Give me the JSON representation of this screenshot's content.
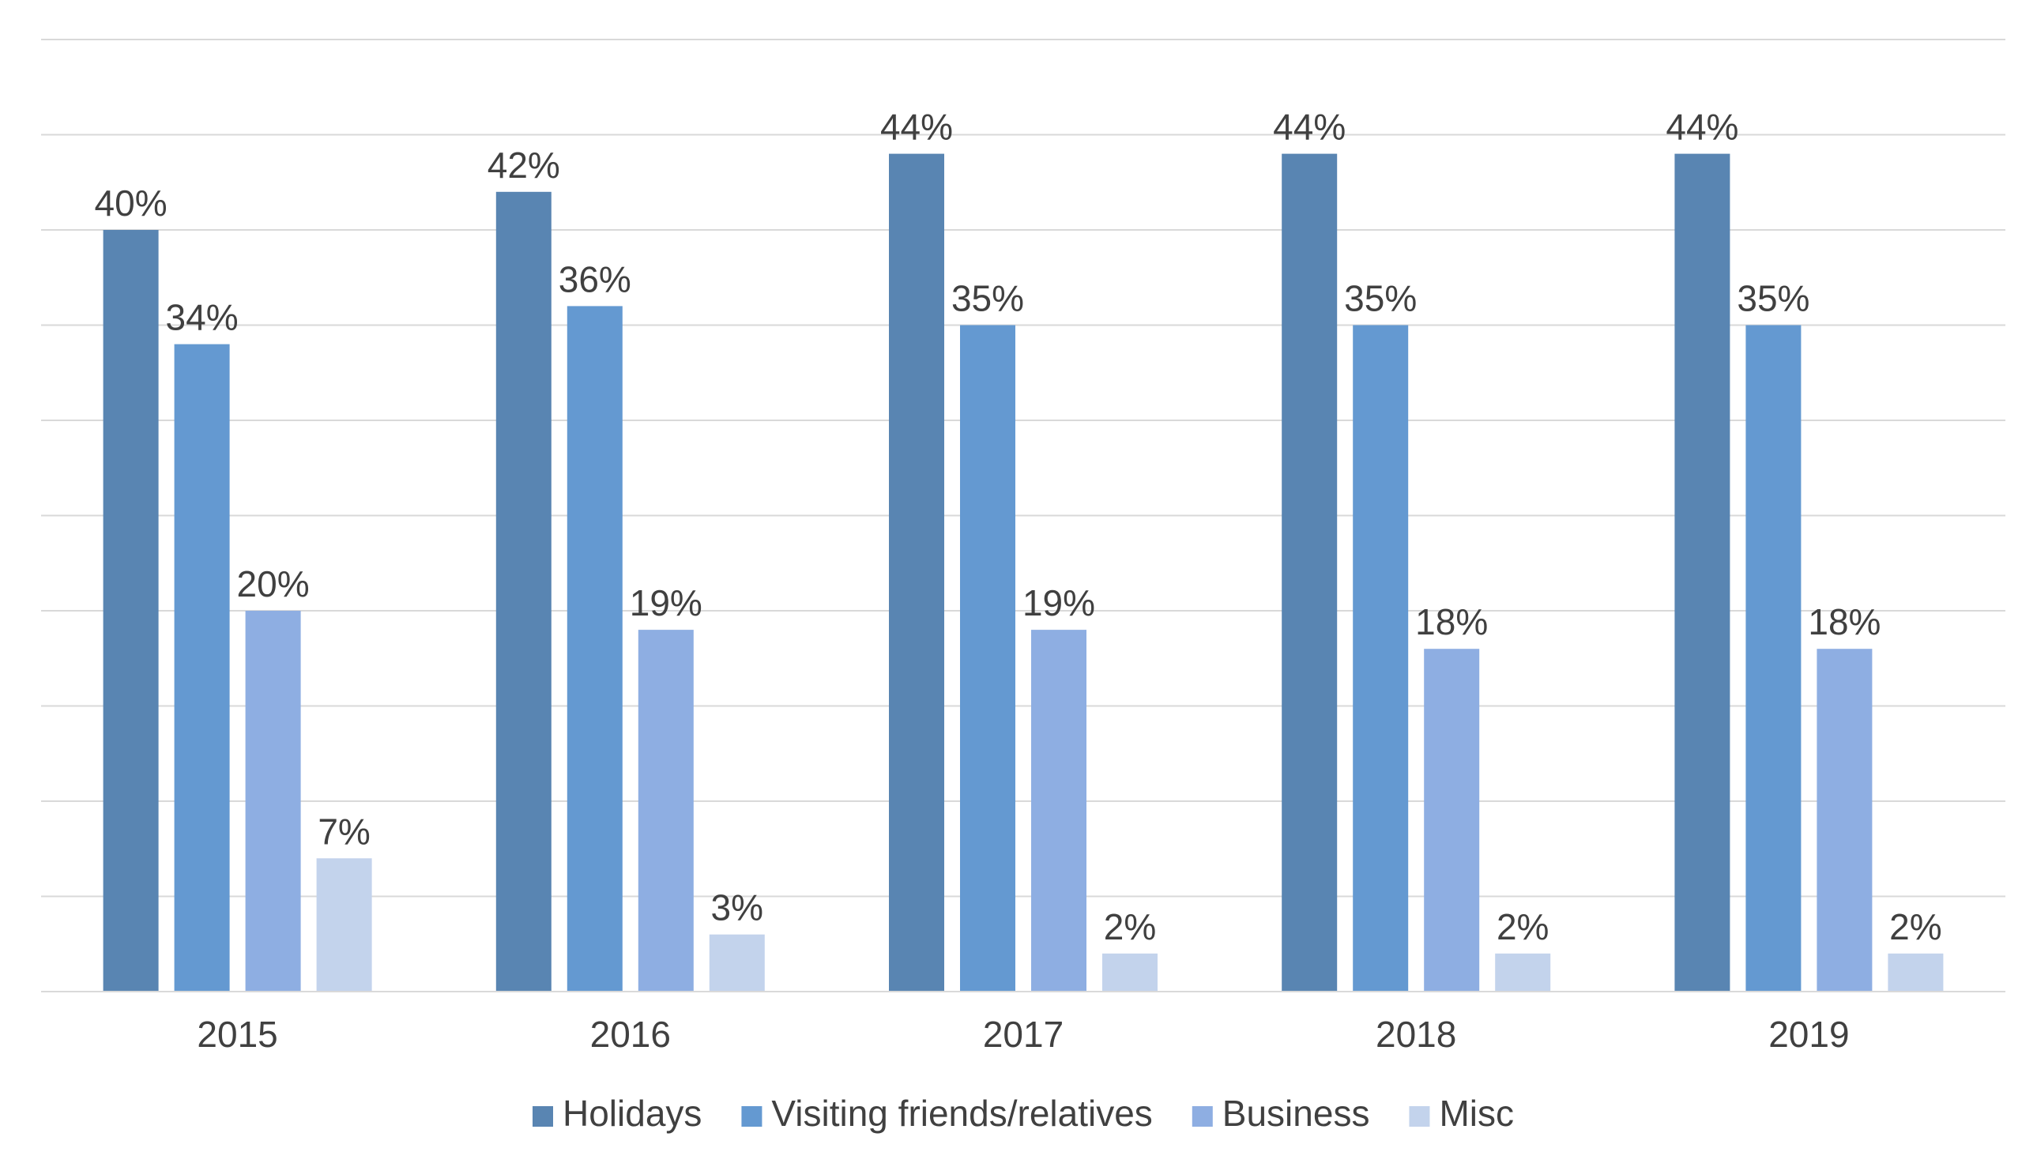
{
  "chart_data": {
    "type": "bar",
    "title": "",
    "xlabel": "",
    "ylabel": "",
    "categories": [
      "2015",
      "2016",
      "2017",
      "2018",
      "2019"
    ],
    "series": [
      {
        "name": "Holidays",
        "color": "#5985b2",
        "values": [
          40,
          42,
          44,
          44,
          44
        ],
        "labels": [
          "40%",
          "42%",
          "44%",
          "44%",
          "44%"
        ]
      },
      {
        "name": "Visiting friends/relatives",
        "color": "#6499d1",
        "values": [
          34,
          36,
          35,
          35,
          35
        ],
        "labels": [
          "34%",
          "36%",
          "35%",
          "35%",
          "35%"
        ]
      },
      {
        "name": "Business",
        "color": "#8eaee2",
        "values": [
          20,
          19,
          19,
          18,
          18
        ],
        "labels": [
          "20%",
          "19%",
          "19%",
          "18%",
          "18%"
        ]
      },
      {
        "name": "Misc",
        "color": "#c3d3ec",
        "values": [
          7,
          3,
          2,
          2,
          2
        ],
        "labels": [
          "7%",
          "3%",
          "2%",
          "2%",
          "2%"
        ]
      }
    ],
    "ylim": [
      0,
      50
    ],
    "y_gridline_step": 5,
    "y_axis_tick_labels_shown": false,
    "grid": true,
    "legend_position": "bottom"
  }
}
